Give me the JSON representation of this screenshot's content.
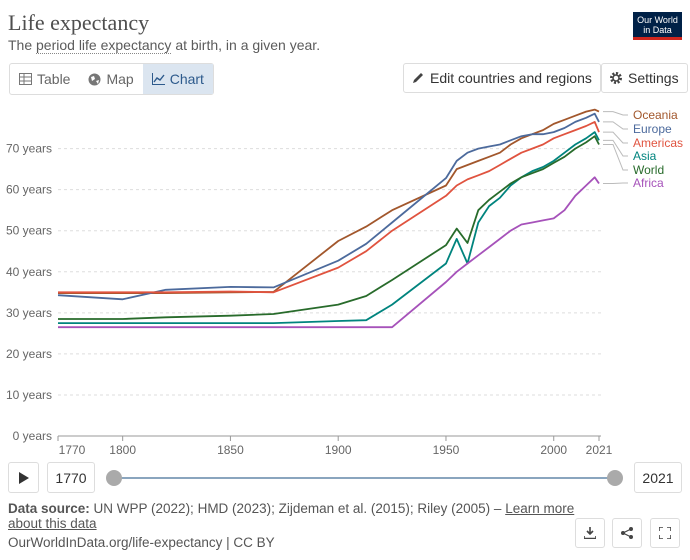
{
  "header": {
    "title": "Life expectancy",
    "subtitle_start": "The ",
    "subtitle_link": "period life expectancy",
    "subtitle_end": " at birth, in a given year.",
    "logo_line1": "Our World",
    "logo_line2": "in Data"
  },
  "tabs": [
    "Table",
    "Map",
    "Chart"
  ],
  "buttons": {
    "edit": "Edit countries and regions",
    "settings": "Settings"
  },
  "timeline": {
    "start": "1770",
    "end": "2021"
  },
  "footer": {
    "source_label": "Data source:",
    "source_text": " UN WPP (2022); HMD (2023); Zijdeman et al. (2015); Riley (2005) – ",
    "learn_more": "Learn more about this data",
    "url": "OurWorldInData.org/life-expectancy | CC BY"
  },
  "chart_data": {
    "type": "line",
    "x": [
      1770,
      1800,
      1820,
      1850,
      1870,
      1900,
      1913,
      1925,
      1950,
      1955,
      1960,
      1965,
      1970,
      1975,
      1980,
      1985,
      1990,
      1995,
      2000,
      2005,
      2010,
      2015,
      2019,
      2021
    ],
    "xlim": [
      1770,
      2021
    ],
    "xticks": [
      1770,
      1800,
      1850,
      1900,
      1950,
      2000,
      2021
    ],
    "ylim": [
      0,
      80
    ],
    "yticks": [
      {
        "value": 0,
        "label": "0 years"
      },
      {
        "value": 10,
        "label": "10 years"
      },
      {
        "value": 20,
        "label": "20 years"
      },
      {
        "value": 30,
        "label": "30 years"
      },
      {
        "value": 40,
        "label": "40 years"
      },
      {
        "value": 50,
        "label": "50 years"
      },
      {
        "value": 60,
        "label": "60 years"
      },
      {
        "value": 70,
        "label": "70 years"
      }
    ],
    "grid": true,
    "series": [
      {
        "name": "Oceania",
        "color": "#a2572c",
        "values": [
          34.8,
          34.8,
          34.8,
          35,
          35.1,
          47.5,
          51,
          55,
          61,
          65,
          66,
          67,
          68,
          69,
          71,
          72.5,
          73.5,
          74.5,
          76,
          77,
          78,
          79,
          79.5,
          79
        ]
      },
      {
        "name": "Europe",
        "color": "#4c6a9c",
        "values": [
          34.3,
          33.3,
          35.6,
          36.3,
          36.2,
          42.7,
          46.8,
          52,
          62.8,
          67,
          69,
          70,
          70.5,
          71,
          72,
          73,
          73.5,
          73.5,
          74,
          75,
          76.5,
          77.5,
          78.5,
          76.5
        ]
      },
      {
        "name": "Americas",
        "color": "#e0533f",
        "values": [
          35,
          35,
          35,
          35.2,
          35,
          41,
          45,
          50,
          58.5,
          61,
          62.5,
          63.5,
          64.5,
          66,
          67.5,
          69,
          70,
          71,
          72.5,
          73.5,
          74.5,
          75.5,
          76.5,
          74
        ]
      },
      {
        "name": "Asia",
        "color": "#00847e",
        "values": [
          27.5,
          27.5,
          27.5,
          27.5,
          27.5,
          28,
          28.2,
          32,
          42,
          48,
          42,
          52,
          56,
          58,
          61,
          63,
          64.5,
          65.5,
          67,
          69,
          71,
          72.5,
          74,
          72
        ]
      },
      {
        "name": "World",
        "color": "#286b2b",
        "values": [
          28.5,
          28.5,
          28.9,
          29.3,
          29.7,
          32,
          34.1,
          38,
          46.5,
          50.5,
          47,
          55,
          57.5,
          59.5,
          61.5,
          63,
          64,
          65,
          66.5,
          68,
          70,
          71.5,
          73,
          71
        ]
      },
      {
        "name": "Africa",
        "color": "#a652ba",
        "values": [
          26.5,
          26.5,
          26.5,
          26.5,
          26.5,
          26.5,
          26.5,
          26.5,
          37.5,
          40,
          42,
          44,
          46,
          48,
          50,
          51.5,
          52,
          52.5,
          53,
          55,
          58.5,
          61,
          63,
          61.5
        ]
      }
    ]
  }
}
